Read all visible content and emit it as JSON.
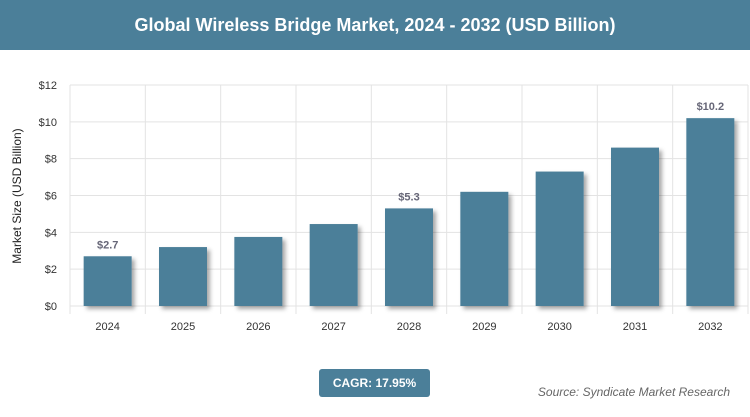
{
  "title": "Global Wireless Bridge Market, 2024 - 2032 (USD Billion)",
  "cagr": "CAGR: 17.95%",
  "source": "Source: Syndicate Market Research",
  "chart_data": {
    "type": "bar",
    "title": "Global Wireless Bridge Market, 2024 - 2032 (USD Billion)",
    "xlabel": "",
    "ylabel": "Market Size (USD Billion)",
    "ylim": [
      0,
      12
    ],
    "yticks": [
      "$0",
      "$2",
      "$4",
      "$6",
      "$8",
      "$10",
      "$12"
    ],
    "categories": [
      "2024",
      "2025",
      "2026",
      "2027",
      "2028",
      "2029",
      "2030",
      "2031",
      "2032"
    ],
    "values": [
      2.7,
      3.2,
      3.75,
      4.45,
      5.3,
      6.2,
      7.3,
      8.6,
      10.2
    ],
    "data_labels": {
      "0": "$2.7",
      "4": "$5.3",
      "8": "$10.2"
    },
    "bar_color": "#4b7f99",
    "grid": true
  }
}
